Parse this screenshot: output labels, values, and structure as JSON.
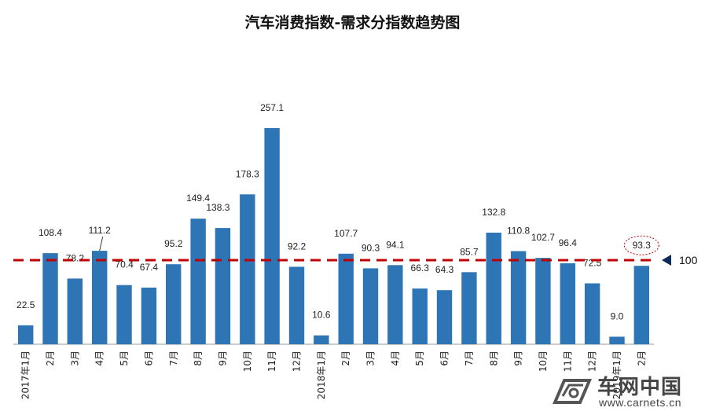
{
  "chart_data": {
    "type": "bar",
    "title": "汽车消费指数-需求分指数趋势图",
    "categories": [
      "2017年1月",
      "2月",
      "3月",
      "4月",
      "5月",
      "6月",
      "7月",
      "8月",
      "9月",
      "10月",
      "11月",
      "12月",
      "2018年1月",
      "2月",
      "3月",
      "4月",
      "5月",
      "6月",
      "7月",
      "8月",
      "9月",
      "10月",
      "11月",
      "12月",
      "2019年1月",
      "2月"
    ],
    "values": [
      22.5,
      108.4,
      78.2,
      111.2,
      70.4,
      67.4,
      95.2,
      149.4,
      138.3,
      178.3,
      257.1,
      92.2,
      10.6,
      107.7,
      90.3,
      94.1,
      66.3,
      64.3,
      85.7,
      132.8,
      110.8,
      102.7,
      96.4,
      72.5,
      9.0,
      93.3
    ],
    "value_labels": [
      "22.5",
      "108.4",
      "78.2",
      "111.2",
      "70.4",
      "67.4",
      "95.2",
      "149.4",
      "138.3",
      "178.3",
      "257.1",
      "92.2",
      "10.6",
      "107.7",
      "90.3",
      "94.1",
      "66.3",
      "64.3",
      "85.7",
      "132.8",
      "110.8",
      "102.7",
      "96.4",
      "72.5",
      "9.0",
      "93.3"
    ],
    "reference_line": {
      "value": 100,
      "label": "100",
      "color": "#c00000",
      "style": "dashed"
    },
    "highlighted_label": "93.3",
    "bar_color": "#2e75b6",
    "ylim": [
      0,
      270
    ],
    "xlabel": "",
    "ylabel": "",
    "grid": false,
    "legend": "none"
  },
  "watermark": {
    "text": "车网中国",
    "url": "www.carnets.cn"
  },
  "colors": {
    "bar": "#2e75b6",
    "reference_line": "#c00000",
    "watermark": "#444444"
  }
}
